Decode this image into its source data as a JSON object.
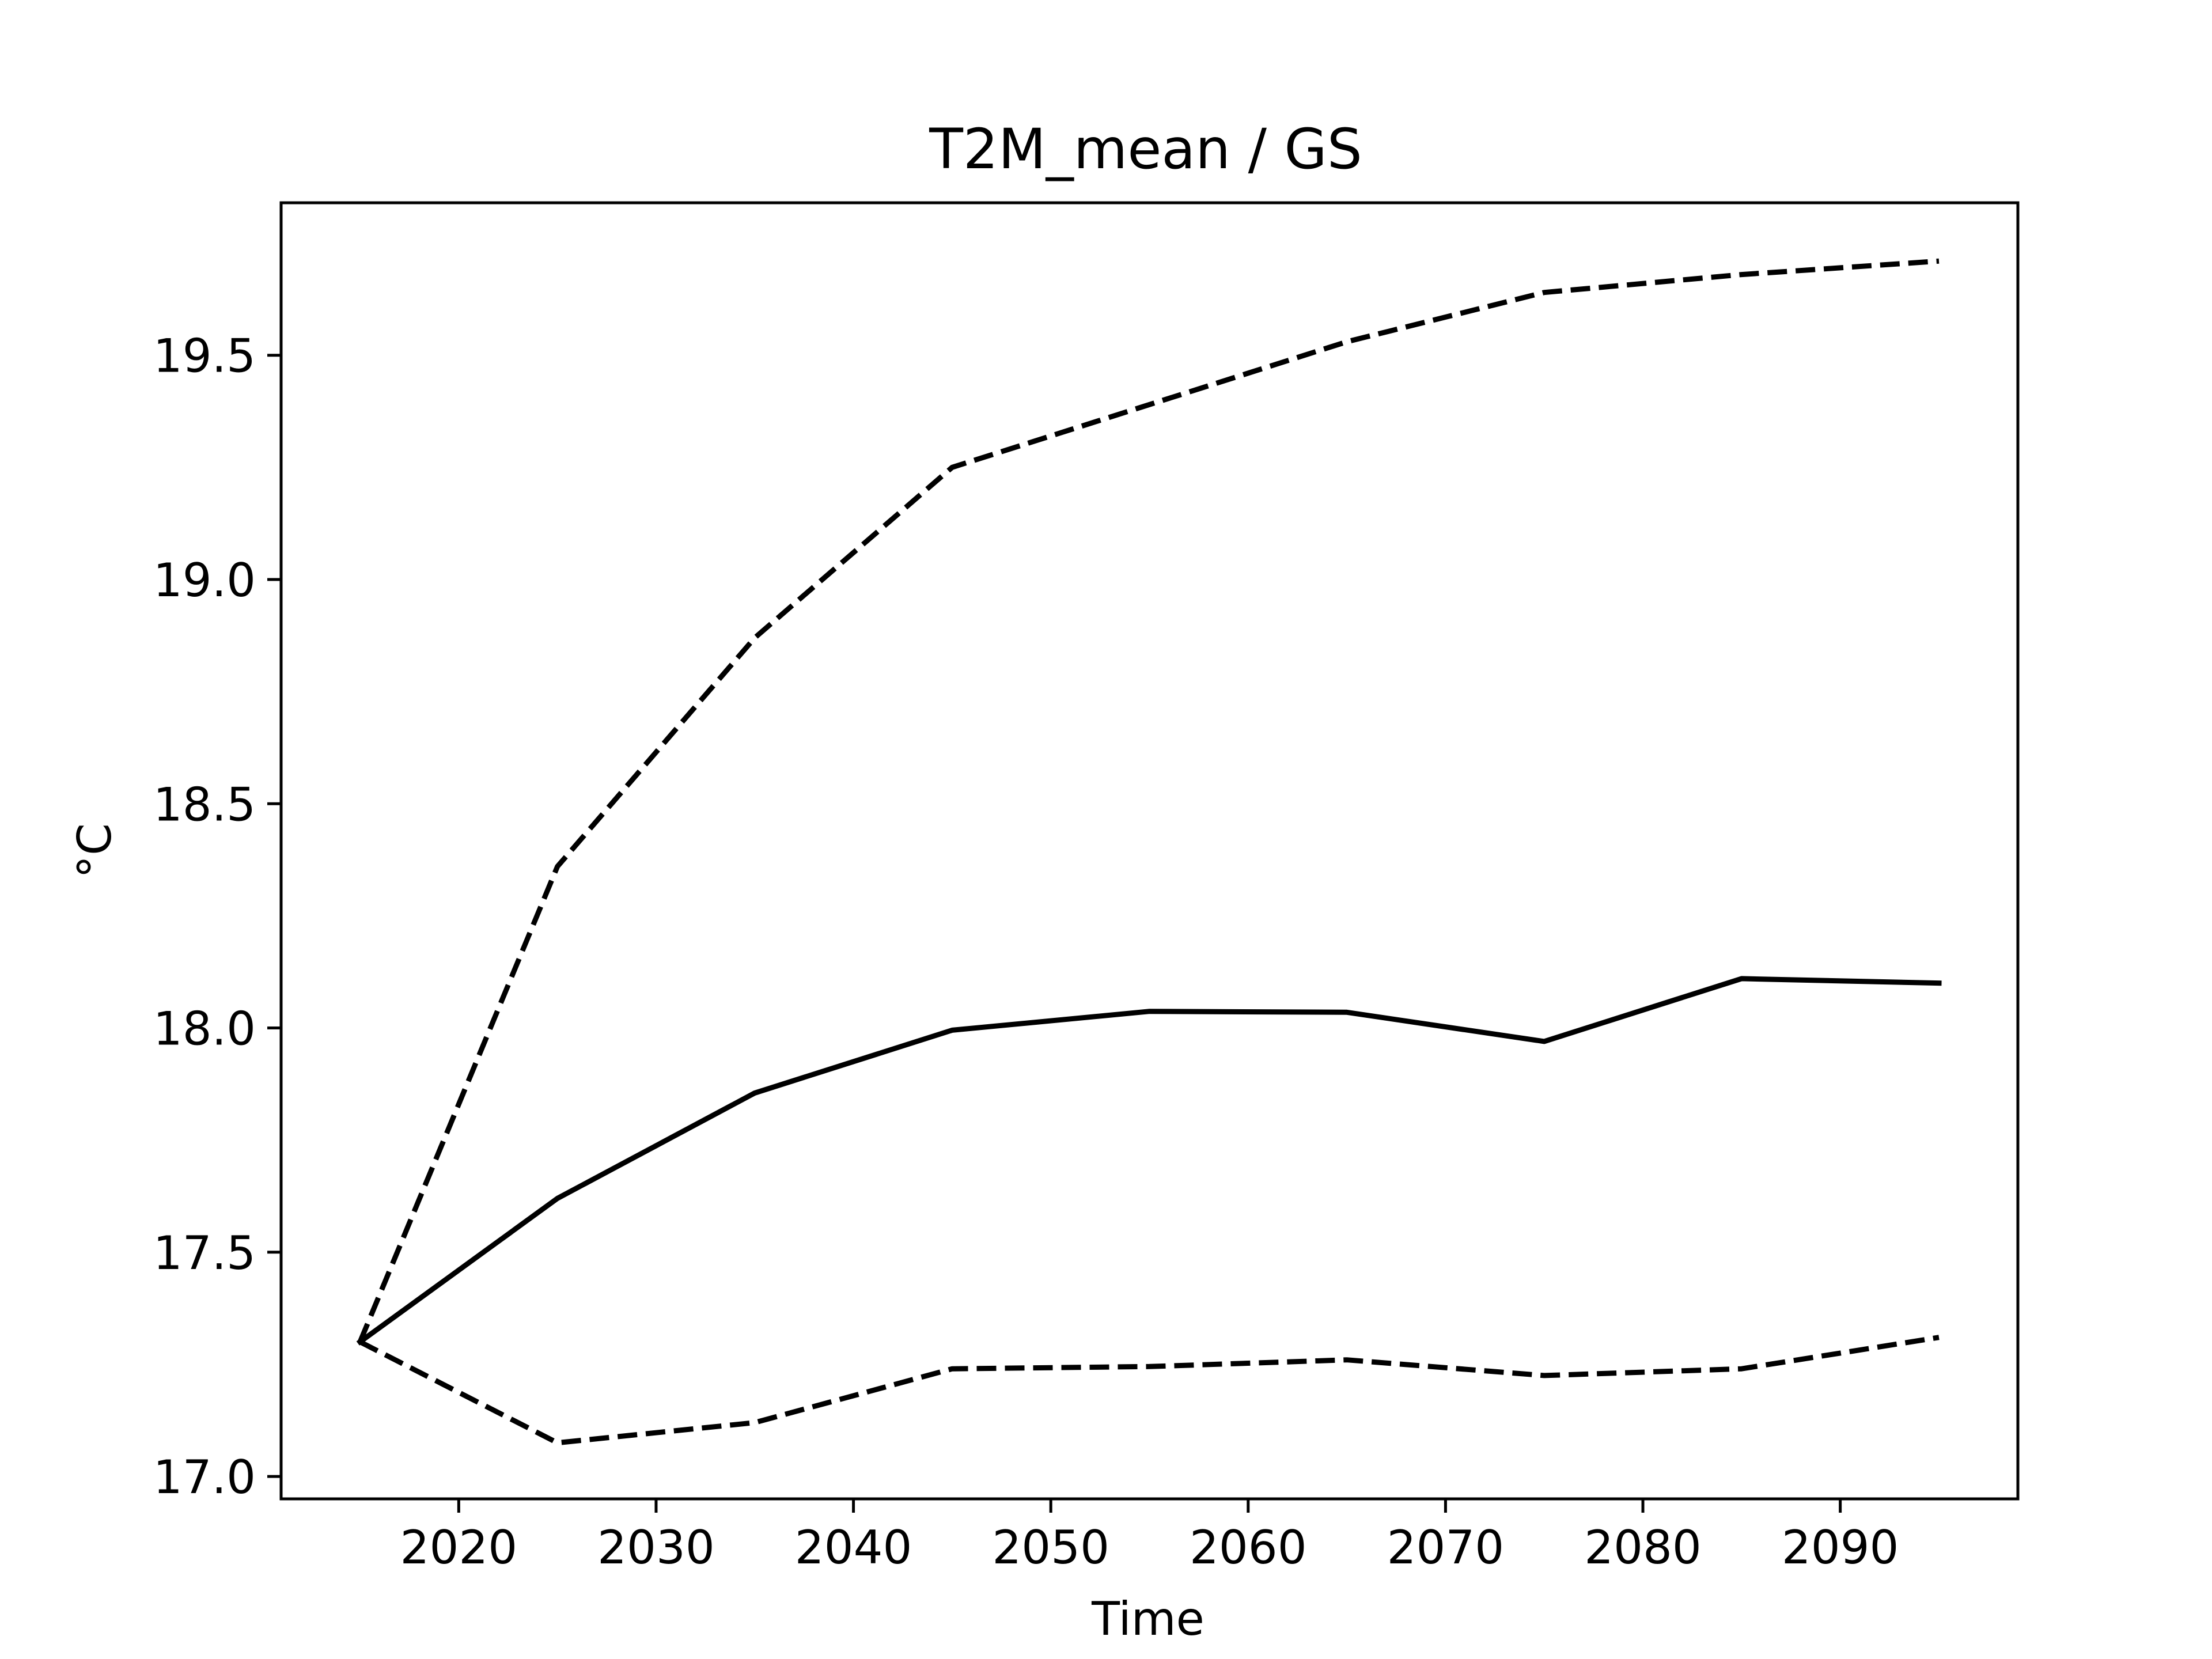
{
  "chart_data": {
    "type": "line",
    "title": "T2M_mean / GS",
    "xlabel": "Time",
    "ylabel": "°C",
    "xlim": [
      2011,
      2099
    ],
    "ylim": [
      16.95,
      19.84
    ],
    "xticks": [
      2020,
      2030,
      2040,
      2050,
      2060,
      2070,
      2080,
      2090
    ],
    "yticks": [
      17.0,
      17.5,
      18.0,
      18.5,
      19.0,
      19.5
    ],
    "ytick_labels": [
      "17.0",
      "17.5",
      "18.0",
      "18.5",
      "19.0",
      "19.5"
    ],
    "grid": false,
    "legend": "none",
    "x": [
      2015,
      2025,
      2035,
      2045,
      2055,
      2065,
      2075,
      2085,
      2095
    ],
    "series": [
      {
        "style": "solid",
        "color": "#000000",
        "values": [
          17.3,
          17.62,
          17.855,
          17.995,
          18.037,
          18.035,
          17.97,
          18.11,
          18.1
        ]
      },
      {
        "style": "dashed",
        "color": "#000000",
        "values": [
          17.3,
          18.36,
          18.87,
          19.25,
          19.39,
          19.53,
          19.64,
          19.68,
          19.71
        ]
      },
      {
        "style": "dashed",
        "color": "#000000",
        "values": [
          17.3,
          17.075,
          17.12,
          17.24,
          17.245,
          17.26,
          17.225,
          17.24,
          17.31
        ]
      }
    ]
  }
}
